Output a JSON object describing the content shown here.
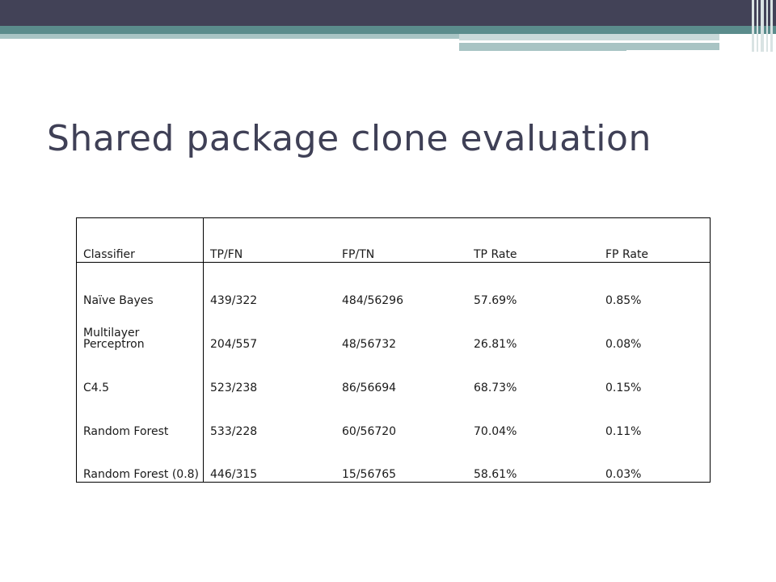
{
  "slide": {
    "title": "Shared package clone evaluation"
  },
  "table": {
    "headers": [
      "Classifier",
      "TP/FN",
      "FP/TN",
      "TP Rate",
      "FP Rate"
    ],
    "rows": [
      {
        "classifier": "Naïve Bayes",
        "tp_fn": "439/322",
        "fp_tn": "484/56296",
        "tp_rate": "57.69%",
        "fp_rate": "0.85%"
      },
      {
        "classifier": "Multilayer Perceptron",
        "tp_fn": "204/557",
        "fp_tn": "48/56732",
        "tp_rate": "26.81%",
        "fp_rate": "0.08%"
      },
      {
        "classifier": "C4.5",
        "tp_fn": "523/238",
        "fp_tn": "86/56694",
        "tp_rate": "68.73%",
        "fp_rate": "0.15%"
      },
      {
        "classifier": "Random Forest",
        "tp_fn": "533/228",
        "fp_tn": "60/56720",
        "tp_rate": "70.04%",
        "fp_rate": "0.11%"
      },
      {
        "classifier": "Random Forest (0.8)",
        "tp_fn": "446/315",
        "fp_tn": "15/56765",
        "tp_rate": "58.61%",
        "fp_rate": "0.03%"
      }
    ]
  },
  "theme": {
    "banner_dark": "#424257",
    "banner_teal": "#5b8c8c",
    "banner_light": "#a8c4c4",
    "title_color": "#3f4056"
  }
}
